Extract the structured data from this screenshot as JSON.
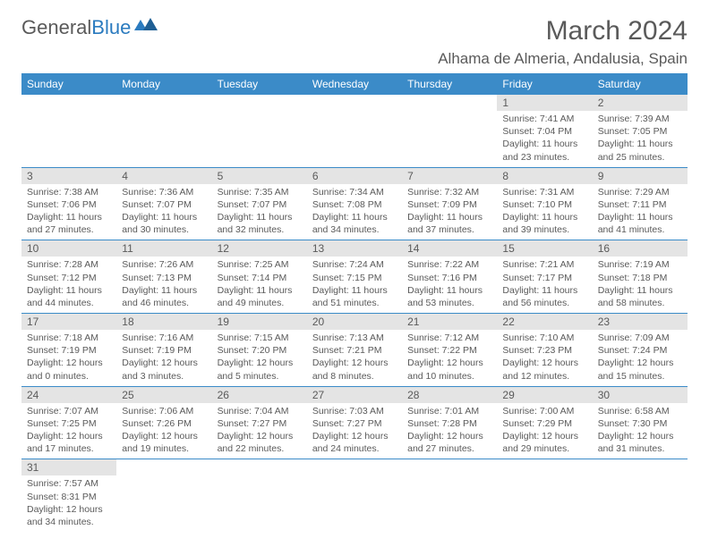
{
  "brand": {
    "name_part1": "General",
    "name_part2": "Blue"
  },
  "title": "March 2024",
  "location": "Alhama de Almeria, Andalusia, Spain",
  "colors": {
    "header_bg": "#3b8bc8",
    "header_text": "#ffffff",
    "daynum_bg": "#e4e4e4",
    "text": "#5a5a5a",
    "rule": "#3b8bc8",
    "brand_blue": "#2b7bbf"
  },
  "weekdays": [
    "Sunday",
    "Monday",
    "Tuesday",
    "Wednesday",
    "Thursday",
    "Friday",
    "Saturday"
  ],
  "weeks": [
    [
      null,
      null,
      null,
      null,
      null,
      {
        "n": "1",
        "sunrise": "Sunrise: 7:41 AM",
        "sunset": "Sunset: 7:04 PM",
        "day": "Daylight: 11 hours and 23 minutes."
      },
      {
        "n": "2",
        "sunrise": "Sunrise: 7:39 AM",
        "sunset": "Sunset: 7:05 PM",
        "day": "Daylight: 11 hours and 25 minutes."
      }
    ],
    [
      {
        "n": "3",
        "sunrise": "Sunrise: 7:38 AM",
        "sunset": "Sunset: 7:06 PM",
        "day": "Daylight: 11 hours and 27 minutes."
      },
      {
        "n": "4",
        "sunrise": "Sunrise: 7:36 AM",
        "sunset": "Sunset: 7:07 PM",
        "day": "Daylight: 11 hours and 30 minutes."
      },
      {
        "n": "5",
        "sunrise": "Sunrise: 7:35 AM",
        "sunset": "Sunset: 7:07 PM",
        "day": "Daylight: 11 hours and 32 minutes."
      },
      {
        "n": "6",
        "sunrise": "Sunrise: 7:34 AM",
        "sunset": "Sunset: 7:08 PM",
        "day": "Daylight: 11 hours and 34 minutes."
      },
      {
        "n": "7",
        "sunrise": "Sunrise: 7:32 AM",
        "sunset": "Sunset: 7:09 PM",
        "day": "Daylight: 11 hours and 37 minutes."
      },
      {
        "n": "8",
        "sunrise": "Sunrise: 7:31 AM",
        "sunset": "Sunset: 7:10 PM",
        "day": "Daylight: 11 hours and 39 minutes."
      },
      {
        "n": "9",
        "sunrise": "Sunrise: 7:29 AM",
        "sunset": "Sunset: 7:11 PM",
        "day": "Daylight: 11 hours and 41 minutes."
      }
    ],
    [
      {
        "n": "10",
        "sunrise": "Sunrise: 7:28 AM",
        "sunset": "Sunset: 7:12 PM",
        "day": "Daylight: 11 hours and 44 minutes."
      },
      {
        "n": "11",
        "sunrise": "Sunrise: 7:26 AM",
        "sunset": "Sunset: 7:13 PM",
        "day": "Daylight: 11 hours and 46 minutes."
      },
      {
        "n": "12",
        "sunrise": "Sunrise: 7:25 AM",
        "sunset": "Sunset: 7:14 PM",
        "day": "Daylight: 11 hours and 49 minutes."
      },
      {
        "n": "13",
        "sunrise": "Sunrise: 7:24 AM",
        "sunset": "Sunset: 7:15 PM",
        "day": "Daylight: 11 hours and 51 minutes."
      },
      {
        "n": "14",
        "sunrise": "Sunrise: 7:22 AM",
        "sunset": "Sunset: 7:16 PM",
        "day": "Daylight: 11 hours and 53 minutes."
      },
      {
        "n": "15",
        "sunrise": "Sunrise: 7:21 AM",
        "sunset": "Sunset: 7:17 PM",
        "day": "Daylight: 11 hours and 56 minutes."
      },
      {
        "n": "16",
        "sunrise": "Sunrise: 7:19 AM",
        "sunset": "Sunset: 7:18 PM",
        "day": "Daylight: 11 hours and 58 minutes."
      }
    ],
    [
      {
        "n": "17",
        "sunrise": "Sunrise: 7:18 AM",
        "sunset": "Sunset: 7:19 PM",
        "day": "Daylight: 12 hours and 0 minutes."
      },
      {
        "n": "18",
        "sunrise": "Sunrise: 7:16 AM",
        "sunset": "Sunset: 7:19 PM",
        "day": "Daylight: 12 hours and 3 minutes."
      },
      {
        "n": "19",
        "sunrise": "Sunrise: 7:15 AM",
        "sunset": "Sunset: 7:20 PM",
        "day": "Daylight: 12 hours and 5 minutes."
      },
      {
        "n": "20",
        "sunrise": "Sunrise: 7:13 AM",
        "sunset": "Sunset: 7:21 PM",
        "day": "Daylight: 12 hours and 8 minutes."
      },
      {
        "n": "21",
        "sunrise": "Sunrise: 7:12 AM",
        "sunset": "Sunset: 7:22 PM",
        "day": "Daylight: 12 hours and 10 minutes."
      },
      {
        "n": "22",
        "sunrise": "Sunrise: 7:10 AM",
        "sunset": "Sunset: 7:23 PM",
        "day": "Daylight: 12 hours and 12 minutes."
      },
      {
        "n": "23",
        "sunrise": "Sunrise: 7:09 AM",
        "sunset": "Sunset: 7:24 PM",
        "day": "Daylight: 12 hours and 15 minutes."
      }
    ],
    [
      {
        "n": "24",
        "sunrise": "Sunrise: 7:07 AM",
        "sunset": "Sunset: 7:25 PM",
        "day": "Daylight: 12 hours and 17 minutes."
      },
      {
        "n": "25",
        "sunrise": "Sunrise: 7:06 AM",
        "sunset": "Sunset: 7:26 PM",
        "day": "Daylight: 12 hours and 19 minutes."
      },
      {
        "n": "26",
        "sunrise": "Sunrise: 7:04 AM",
        "sunset": "Sunset: 7:27 PM",
        "day": "Daylight: 12 hours and 22 minutes."
      },
      {
        "n": "27",
        "sunrise": "Sunrise: 7:03 AM",
        "sunset": "Sunset: 7:27 PM",
        "day": "Daylight: 12 hours and 24 minutes."
      },
      {
        "n": "28",
        "sunrise": "Sunrise: 7:01 AM",
        "sunset": "Sunset: 7:28 PM",
        "day": "Daylight: 12 hours and 27 minutes."
      },
      {
        "n": "29",
        "sunrise": "Sunrise: 7:00 AM",
        "sunset": "Sunset: 7:29 PM",
        "day": "Daylight: 12 hours and 29 minutes."
      },
      {
        "n": "30",
        "sunrise": "Sunrise: 6:58 AM",
        "sunset": "Sunset: 7:30 PM",
        "day": "Daylight: 12 hours and 31 minutes."
      }
    ],
    [
      {
        "n": "31",
        "sunrise": "Sunrise: 7:57 AM",
        "sunset": "Sunset: 8:31 PM",
        "day": "Daylight: 12 hours and 34 minutes."
      },
      null,
      null,
      null,
      null,
      null,
      null
    ]
  ]
}
